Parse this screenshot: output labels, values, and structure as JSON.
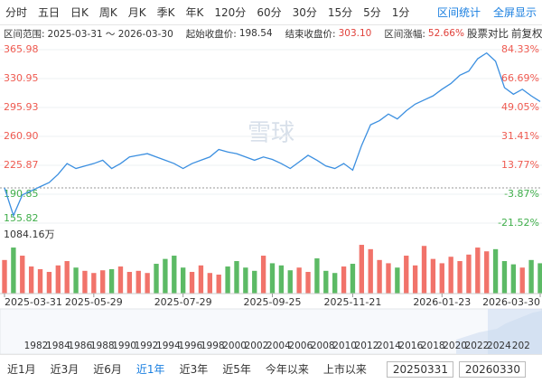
{
  "tabs": [
    "分时",
    "五日",
    "日K",
    "周K",
    "月K",
    "季K",
    "年K",
    "120分",
    "60分",
    "30分",
    "15分",
    "5分",
    "1分"
  ],
  "tools": [
    "区间统计",
    "全屏显示"
  ],
  "info": {
    "range_label": "区间范围:",
    "range": "2025-03-31 ～ 2026-03-30",
    "start_label": "起始收盘价:",
    "start": "198.54",
    "end_label": "结束收盘价:",
    "end": "303.10",
    "change_label": "区间涨幅:",
    "change": "52.66%",
    "compare": "股票对比",
    "adjust": "前复权"
  },
  "watermark": "雪球",
  "navigator_years": [
    "1982",
    "1984",
    "1986",
    "1988",
    "1990",
    "1992",
    "1994",
    "1996",
    "1998",
    "2000",
    "2002",
    "2004",
    "2006",
    "2008",
    "2010",
    "2012",
    "2014",
    "2016",
    "2018",
    "2020",
    "2022",
    "2024",
    "202"
  ],
  "periods": [
    "近1月",
    "近3月",
    "近6月",
    "近1年",
    "近3年",
    "近5年",
    "今年以来",
    "上市以来"
  ],
  "active_period": 3,
  "dates": [
    "20250331",
    "20260330"
  ],
  "chart_data": {
    "type": "line",
    "color": "#3b8fe0",
    "up_color": "#ef5a50",
    "down_color": "#3fae4a",
    "categories": [
      "2025-03-31",
      null,
      null,
      null,
      null,
      null,
      null,
      null,
      null,
      null,
      "2025-05-29",
      null,
      null,
      null,
      null,
      null,
      null,
      null,
      null,
      null,
      "2025-07-29",
      null,
      null,
      null,
      null,
      null,
      null,
      null,
      null,
      null,
      "2025-09-25",
      null,
      null,
      null,
      null,
      null,
      null,
      null,
      null,
      "2025-11-21",
      null,
      null,
      null,
      null,
      null,
      null,
      null,
      null,
      null,
      "2026-01-23",
      null,
      null,
      null,
      null,
      null,
      null,
      null,
      null,
      null,
      null,
      "2026-03-30"
    ],
    "values": [
      198.54,
      165,
      190,
      195,
      200,
      205,
      215,
      228,
      222,
      225,
      228,
      232,
      222,
      228,
      236,
      238,
      240,
      236,
      232,
      228,
      222,
      228,
      232,
      236,
      245,
      242,
      240,
      236,
      232,
      236,
      233,
      228,
      222,
      230,
      238,
      232,
      225,
      222,
      228,
      220,
      250,
      275,
      280,
      288,
      282,
      292,
      300,
      305,
      310,
      318,
      325,
      335,
      340,
      355,
      362,
      352,
      320,
      312,
      318,
      310,
      303.1
    ],
    "base_value": 198.54,
    "ylim": [
      155.82,
      365.98
    ],
    "yticks": [
      365.98,
      330.95,
      295.93,
      {
        "value": 260.9,
        "label": "260.90"
      },
      225.87,
      190.85,
      155.82
    ],
    "y2lim": [
      -21.52,
      84.33
    ],
    "y2ticks": [
      {
        "value": 84.33,
        "label": "84.33%"
      },
      {
        "value": 66.69,
        "label": "66.69%"
      },
      {
        "value": 49.05,
        "label": "49.05%"
      },
      {
        "value": 31.41,
        "label": "31.41%"
      },
      {
        "value": 13.77,
        "label": "13.77%"
      },
      {
        "value": -3.87,
        "label": "-3.87%"
      },
      {
        "value": -21.52,
        "label": "-21.52%"
      }
    ],
    "volume_values": [
      620,
      850,
      700,
      500,
      450,
      400,
      520,
      600,
      480,
      420,
      380,
      430,
      450,
      500,
      400,
      420,
      380,
      550,
      640,
      700,
      480,
      400,
      520,
      380,
      350,
      500,
      600,
      480,
      420,
      700,
      560,
      520,
      430,
      480,
      400,
      650,
      420,
      380,
      500,
      550,
      900,
      820,
      620,
      560,
      480,
      700,
      520,
      880,
      640,
      560,
      680,
      600,
      720,
      850,
      780,
      820,
      600,
      540,
      480,
      620,
      560
    ],
    "volume_ylim": [
      0,
      1084.16
    ],
    "volume_yticks": [
      {
        "value": 1084.16,
        "label": "1084.16万"
      }
    ]
  }
}
